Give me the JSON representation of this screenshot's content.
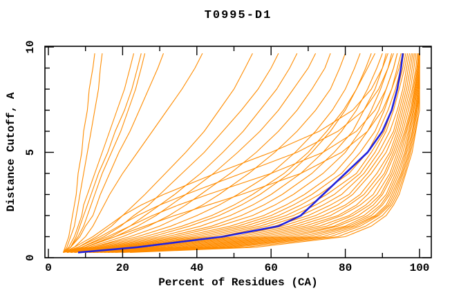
{
  "window": {
    "title": "T0995-D1"
  },
  "chart_data": {
    "type": "line",
    "title": "T0995-D1",
    "xlabel": "Percent of Residues (CA)",
    "ylabel": "Distance Cutoff, A",
    "xlim": [
      0,
      100
    ],
    "ylim": [
      0,
      10
    ],
    "grid": false,
    "legend": "none",
    "x_ticks_major": [
      0,
      20,
      40,
      60,
      80,
      100
    ],
    "x_ticks_minor": [
      10,
      30,
      50,
      70,
      90
    ],
    "y_ticks_major": [
      0,
      5,
      10
    ],
    "y_ticks_minor": [
      1,
      2,
      3,
      4,
      6,
      7,
      8,
      9
    ],
    "colors": {
      "orange": "#ff8c00",
      "blue": "#2121dd",
      "axis": "#000000"
    },
    "cutoffs": [
      0.25,
      0.5,
      1,
      1.5,
      2,
      2.5,
      3,
      4,
      5,
      6,
      7,
      8,
      9,
      9.7
    ],
    "orange_series": [
      [
        4,
        4.5,
        5.5,
        6,
        6.5,
        7,
        7.5,
        8,
        9,
        9.5,
        10.5,
        11,
        12,
        12.5
      ],
      [
        4,
        5,
        6,
        7,
        7.5,
        8,
        8.5,
        9.5,
        10.5,
        11.5,
        12.5,
        13.5,
        14,
        14.5
      ],
      [
        4,
        5.5,
        7,
        8,
        9,
        9.5,
        10.5,
        12.5,
        14.5,
        16.5,
        18.5,
        20.5,
        22,
        23
      ],
      [
        4,
        6,
        7.5,
        8.5,
        9.5,
        10.5,
        11.5,
        13.5,
        16,
        18,
        20.5,
        22.5,
        24,
        25
      ],
      [
        4,
        6,
        8,
        9.5,
        10.5,
        11.5,
        12.5,
        14.5,
        17,
        19.5,
        21.5,
        23.5,
        25,
        26
      ],
      [
        4,
        6,
        8.5,
        10,
        12,
        13,
        14,
        16.5,
        19,
        22,
        24.5,
        27,
        29.5,
        31
      ],
      [
        4,
        7,
        10,
        12,
        13.5,
        15,
        16.5,
        20,
        24,
        28,
        32,
        36,
        39.5,
        41.5
      ],
      [
        4,
        8,
        13,
        17,
        20,
        23,
        26,
        31.5,
        37,
        42,
        46,
        50,
        53,
        55
      ],
      [
        4,
        9,
        15,
        19.5,
        23,
        27,
        30,
        36,
        42,
        47,
        52,
        56.5,
        60,
        62
      ],
      [
        4,
        10,
        17,
        22,
        26,
        30,
        34,
        41,
        47,
        52.5,
        57,
        61.5,
        65,
        67
      ],
      [
        4,
        10,
        18,
        24,
        29,
        33,
        37,
        44.5,
        51,
        57,
        62,
        66,
        70,
        72
      ],
      [
        4,
        11,
        20,
        27,
        32.5,
        37,
        41,
        49,
        56,
        62,
        67,
        71,
        74.5,
        76
      ],
      [
        5,
        12,
        22,
        30,
        36,
        41.5,
        46,
        54,
        61,
        67,
        72,
        76,
        78.5,
        80
      ],
      [
        5,
        12,
        24,
        33,
        40,
        46,
        51,
        60,
        66.5,
        72,
        76.5,
        80,
        82.5,
        84
      ],
      [
        5,
        13,
        26,
        36,
        44,
        50,
        55,
        63.5,
        70,
        75,
        79.5,
        83,
        85.5,
        87
      ],
      [
        4,
        7,
        12,
        16,
        20,
        25,
        31,
        45,
        60,
        73,
        82,
        87,
        90,
        91.5
      ],
      [
        4,
        8,
        14,
        19,
        24,
        30,
        37,
        52,
        67,
        78,
        85,
        89,
        91.5,
        93
      ],
      [
        4,
        9,
        16,
        22,
        28,
        35,
        43,
        60,
        74,
        83,
        88,
        91,
        93,
        94
      ],
      [
        5,
        10,
        18,
        26,
        34,
        43,
        52,
        68,
        79,
        86,
        90,
        92.5,
        94.5,
        95.5
      ],
      [
        5,
        14,
        28,
        38,
        46,
        52,
        57,
        65,
        71,
        76,
        80,
        83,
        86,
        88
      ],
      [
        5,
        15,
        30,
        41,
        49,
        55,
        60,
        68,
        74,
        79,
        83,
        86,
        88.5,
        90
      ],
      [
        6,
        16,
        32,
        44,
        52,
        58,
        63,
        71,
        77,
        82,
        85,
        88,
        90,
        91
      ],
      [
        6,
        17,
        34,
        46,
        55,
        61,
        66,
        74,
        80,
        84,
        87,
        89.5,
        91.5,
        92.5
      ],
      [
        6,
        18,
        36,
        49,
        58,
        64,
        69,
        77,
        82,
        86,
        89,
        91,
        93,
        94
      ],
      [
        7,
        19,
        38,
        51,
        60,
        66,
        71,
        79,
        84,
        88,
        90.5,
        92.5,
        94,
        95
      ],
      [
        7,
        20,
        40,
        53,
        62,
        68,
        73,
        81,
        86,
        89,
        91.5,
        93.5,
        95,
        95.8
      ],
      [
        7,
        21,
        42,
        55,
        64,
        70,
        75,
        83,
        87,
        90.5,
        92.5,
        94,
        95.5,
        96.3
      ],
      [
        8,
        22,
        44,
        57,
        66,
        72,
        77,
        84,
        88,
        91,
        93,
        94.5,
        96,
        96.8
      ],
      [
        8,
        23,
        46,
        59,
        68,
        74,
        79,
        85,
        89,
        92,
        94,
        95.5,
        96.5,
        97.3
      ],
      [
        8,
        24,
        48,
        61,
        70,
        76,
        81,
        86,
        90,
        93,
        94.5,
        96,
        97,
        97.8
      ],
      [
        9,
        25,
        50,
        63,
        72,
        78,
        82,
        87,
        91,
        93.5,
        95,
        96.5,
        97.5,
        98.2
      ],
      [
        9,
        27,
        52,
        65,
        74,
        80,
        84,
        88.5,
        92,
        94,
        95.5,
        97,
        98,
        98.6
      ],
      [
        10,
        28,
        54,
        67,
        76,
        81,
        85,
        89.5,
        92.5,
        94.5,
        96,
        97.5,
        98.5,
        99
      ],
      [
        10,
        30,
        56,
        69,
        78,
        83,
        86,
        90.5,
        93,
        95,
        96.5,
        98,
        99,
        99.4
      ],
      [
        11,
        32,
        58,
        71,
        79,
        84,
        87.5,
        91,
        93.5,
        95.5,
        97,
        98.3,
        99.3,
        99.7
      ],
      [
        11,
        34,
        60,
        73,
        81,
        85.5,
        88.5,
        92,
        94,
        96,
        97.5,
        98.6,
        99.5,
        99.9
      ],
      [
        12,
        36,
        62,
        75,
        82,
        86.5,
        89.5,
        92.5,
        94.5,
        96.3,
        97.8,
        98.8,
        99.7,
        100
      ],
      [
        12,
        38,
        64,
        77,
        83.5,
        87.5,
        90,
        93,
        95,
        96.6,
        98,
        99,
        99.8,
        100
      ],
      [
        13,
        40,
        66,
        78,
        85,
        88.5,
        91,
        93.5,
        95.5,
        97,
        98.3,
        99.2,
        100,
        100
      ],
      [
        14,
        42,
        68,
        80,
        86,
        89.5,
        91.5,
        94,
        96,
        97.3,
        98.5,
        99.4,
        100,
        100
      ],
      [
        15,
        44,
        70,
        81,
        87,
        90,
        92,
        94.5,
        96.3,
        97.6,
        98.8,
        99.6,
        100,
        100
      ],
      [
        16,
        46,
        72,
        82,
        88,
        91,
        92.5,
        95,
        96.6,
        98,
        99,
        99.8,
        100,
        100
      ],
      [
        17,
        48,
        74,
        83,
        88.5,
        91.5,
        93,
        95.3,
        97,
        98.2,
        99.2,
        100,
        100,
        100
      ],
      [
        18,
        50,
        76,
        84,
        89,
        92,
        93.5,
        95.6,
        97.3,
        98.5,
        99.4,
        100,
        100,
        100
      ],
      [
        20,
        53,
        78,
        85.5,
        90,
        92.5,
        94,
        96,
        97.6,
        98.8,
        99.7,
        100,
        100,
        100
      ],
      [
        22,
        56,
        80,
        87,
        91,
        93,
        94.5,
        96.3,
        98,
        99,
        100,
        100,
        100,
        100
      ]
    ],
    "blue_series": [
      8,
      24,
      47,
      62,
      68,
      71,
      74,
      80,
      86,
      90,
      92.5,
      94,
      95,
      95.5
    ]
  }
}
